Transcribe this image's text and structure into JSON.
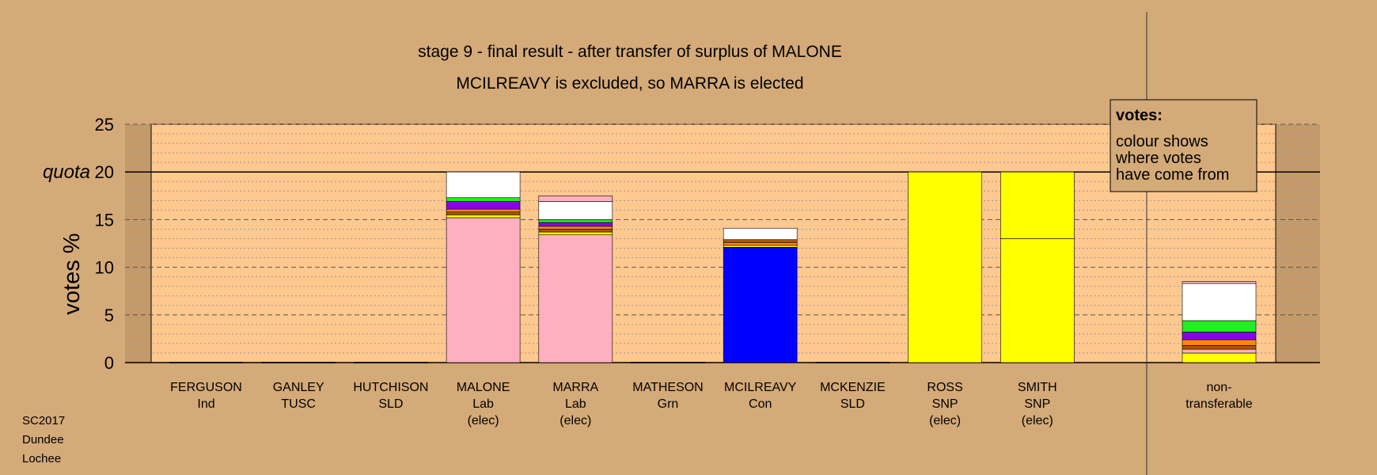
{
  "colors": {
    "background": "#d4aa78",
    "plot_bg": "#ffc88f",
    "Lab": "#ffb0c0",
    "Con": "#0000ff",
    "SNP": "#ffff00",
    "Grn": "#22ee22",
    "other_purple": "#8800ee",
    "other_orange": "#ff8800",
    "other_brown": "#aa5500",
    "non_transferable": "#ffffff"
  },
  "chart_data": {
    "type": "bar",
    "stacked": true,
    "title": "stage 9 - final result - after transfer of surplus of MALONE",
    "subtitle": "MCILREAVY is excluded, so MARRA is elected",
    "ylabel": "votes %",
    "ylim": [
      0,
      25
    ],
    "yticks": [
      "0",
      "5",
      "10",
      "15",
      "20",
      "25"
    ],
    "quota": {
      "label": "quota",
      "value": 20
    },
    "grid": "dashed at 5, dotted at 1",
    "legend": {
      "position": "top-right",
      "title": "votes:",
      "lines": [
        "colour shows",
        "where votes",
        "have come from"
      ]
    },
    "categories": [
      {
        "name": "FERGUSON",
        "party": "Ind",
        "status": "",
        "total": 0
      },
      {
        "name": "GANLEY",
        "party": "TUSC",
        "status": "",
        "total": 0
      },
      {
        "name": "HUTCHISON",
        "party": "SLD",
        "status": "",
        "total": 0
      },
      {
        "name": "MALONE",
        "party": "Lab",
        "status": "(elec)",
        "total": 20
      },
      {
        "name": "MARRA",
        "party": "Lab",
        "status": "(elec)",
        "total": 17.5
      },
      {
        "name": "MATHESON",
        "party": "Grn",
        "status": "",
        "total": 0
      },
      {
        "name": "MCILREAVY",
        "party": "Con",
        "status": "",
        "total": 14.1
      },
      {
        "name": "MCKENZIE",
        "party": "SLD",
        "status": "",
        "total": 0
      },
      {
        "name": "ROSS",
        "party": "SNP",
        "status": "(elec)",
        "total": 20
      },
      {
        "name": "SMITH",
        "party": "SNP",
        "status": "(elec)",
        "total": 20
      }
    ],
    "segments": [
      [],
      [],
      [],
      [
        {
          "value": 15.2,
          "color": "#ffb0c0"
        },
        {
          "value": 0.3,
          "color": "#ffff00"
        },
        {
          "value": 0.3,
          "color": "#aa5500"
        },
        {
          "value": 0.3,
          "color": "#ff8800"
        },
        {
          "value": 0.8,
          "color": "#8800ee"
        },
        {
          "value": 0.4,
          "color": "#22ee22"
        },
        {
          "value": 2.7,
          "color": "#ffffff"
        }
      ],
      [
        {
          "value": 13.4,
          "color": "#ffb0c0"
        },
        {
          "value": 0.3,
          "color": "#ffff00"
        },
        {
          "value": 0.3,
          "color": "#aa5500"
        },
        {
          "value": 0.3,
          "color": "#ff8800"
        },
        {
          "value": 0.4,
          "color": "#8800ee"
        },
        {
          "value": 0.3,
          "color": "#22ee22"
        },
        {
          "value": 1.9,
          "color": "#ffffff"
        },
        {
          "value": 0.6,
          "color": "#ffb0c0"
        }
      ],
      [],
      [
        {
          "value": 12.1,
          "color": "#0000ff"
        },
        {
          "value": 0.2,
          "color": "#ffff00"
        },
        {
          "value": 0.3,
          "color": "#ff8800"
        },
        {
          "value": 0.3,
          "color": "#aa5500"
        },
        {
          "value": 1.2,
          "color": "#ffffff"
        }
      ],
      [],
      [
        {
          "value": 20,
          "color": "#ffff00"
        }
      ],
      [
        {
          "value": 13.0,
          "color": "#ffff00"
        },
        {
          "value": 7.0,
          "color": "#ffff00"
        }
      ]
    ],
    "non_transferable": {
      "label": [
        "non-",
        "transferable"
      ],
      "total": 8.5,
      "segments": [
        {
          "value": 1.0,
          "color": "#ffff00"
        },
        {
          "value": 0.4,
          "color": "#ffb0c0"
        },
        {
          "value": 0.4,
          "color": "#aa5500"
        },
        {
          "value": 0.6,
          "color": "#ff8800"
        },
        {
          "value": 0.8,
          "color": "#8800ee"
        },
        {
          "value": 1.2,
          "color": "#22ee22"
        },
        {
          "value": 3.9,
          "color": "#ffffff"
        },
        {
          "value": 0.2,
          "color": "#ffb0c0"
        }
      ]
    }
  },
  "footer": {
    "lines": [
      "SC2017",
      "Dundee",
      "Lochee"
    ]
  }
}
